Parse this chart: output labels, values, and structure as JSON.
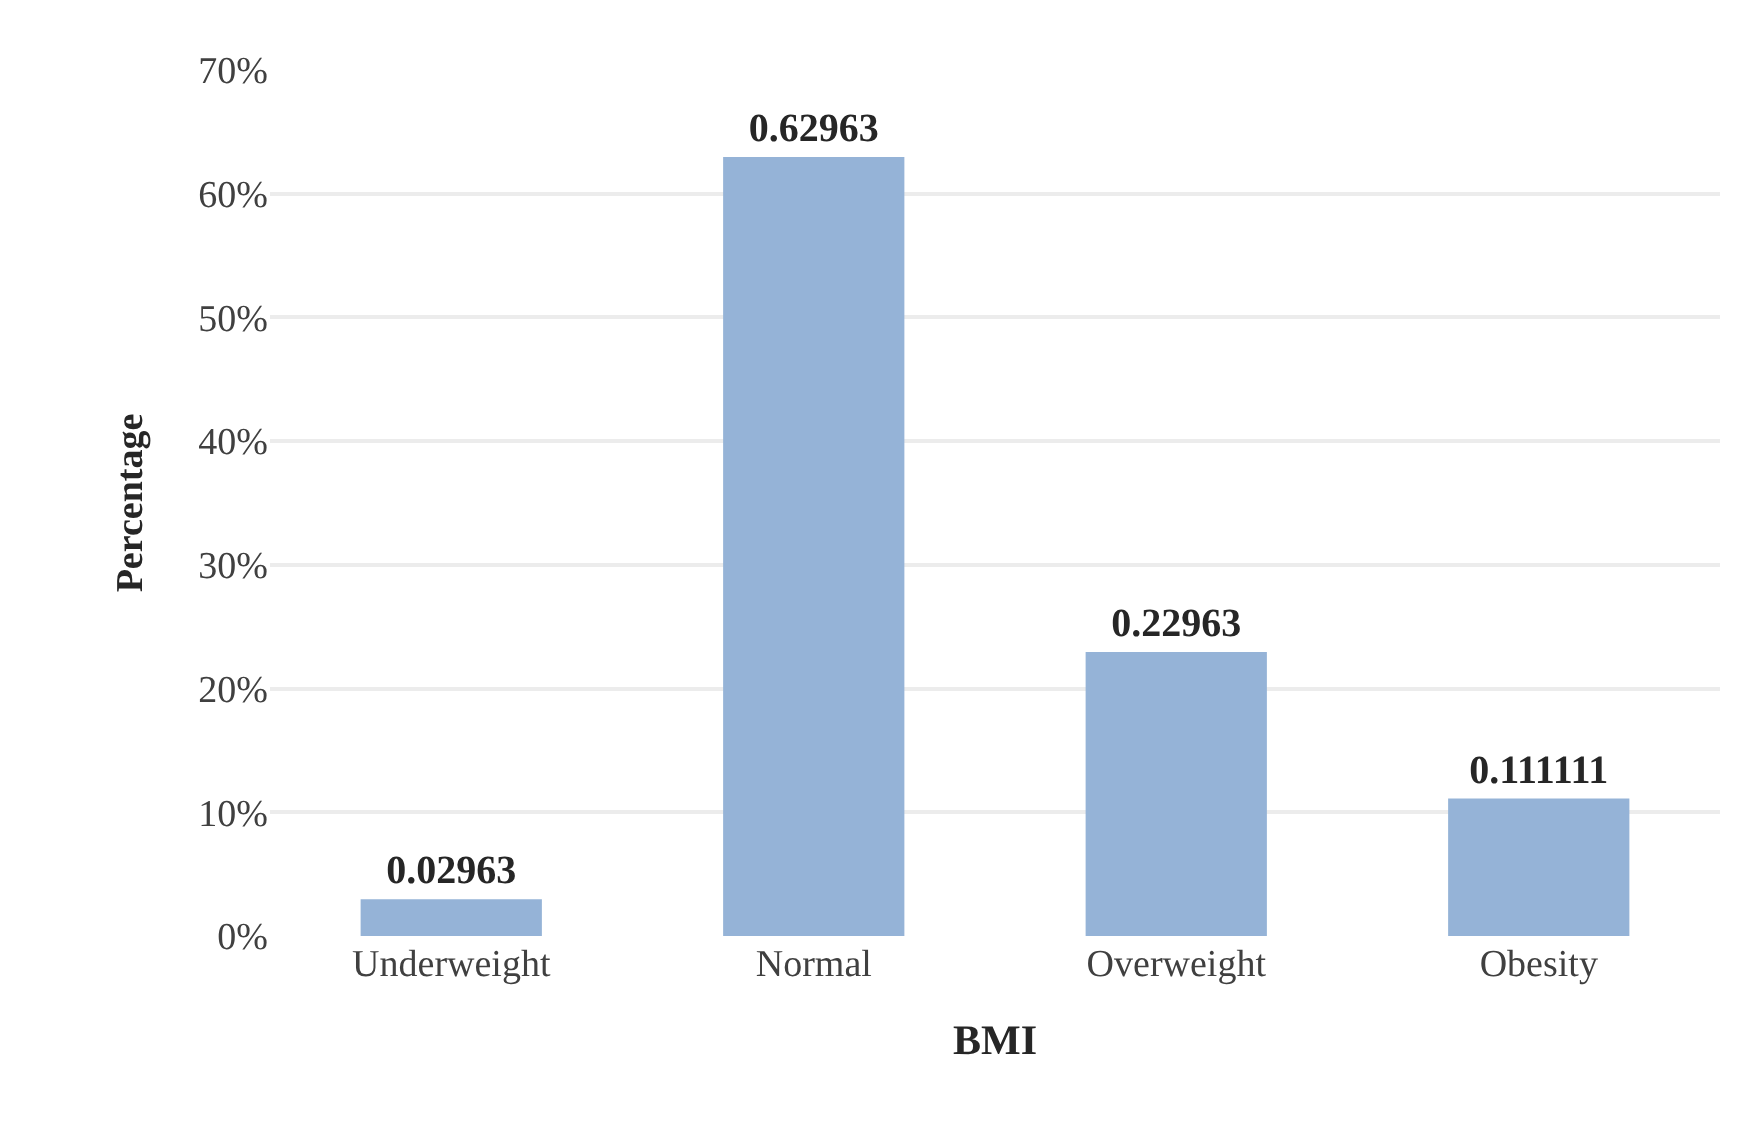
{
  "chart_data": {
    "type": "bar",
    "xlabel": "BMI",
    "ylabel": "Percentage",
    "categories": [
      "Underweight",
      "Normal",
      "Overweight",
      "Obesity"
    ],
    "values": [
      0.02963,
      0.62963,
      0.22963,
      0.111111
    ],
    "color": "#95b3d7",
    "data_labels": true,
    "grid": "y",
    "legend": false,
    "ylim": [
      0,
      0.7
    ],
    "yticks": [
      {
        "value": 0,
        "label": "0%"
      },
      {
        "value": 0.1,
        "label": "10%"
      },
      {
        "value": 0.2,
        "label": "20%"
      },
      {
        "value": 0.3,
        "label": "30%"
      },
      {
        "value": 0.4,
        "label": "40%"
      },
      {
        "value": 0.5,
        "label": "50%"
      },
      {
        "value": 0.6,
        "label": "60%"
      },
      {
        "value": 0.7,
        "label": "70%"
      }
    ]
  }
}
